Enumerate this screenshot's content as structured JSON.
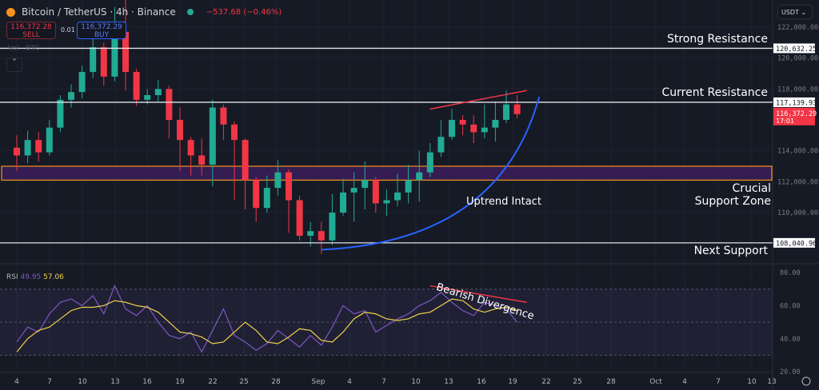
{
  "header": {
    "symbol": "Bitcoin / TetherUS · 4h · Binance",
    "change": "−537.68 (−0.46%)",
    "sell_price": "116,372.28",
    "sell_label": "SELL",
    "buy_price": "116,372.29",
    "buy_label": "BUY",
    "spread": "0.01",
    "volume_label": "Vol · BTC",
    "currency": "USDT"
  },
  "colors": {
    "up": "#22ab94",
    "down": "#f23645",
    "rsi": "#7e57c2",
    "rsi_ma": "#f0d24a",
    "zone_fill": "#3b1f5c",
    "zone_border": "#f7931a",
    "curve": "#2962ff",
    "divergence": "#f23645"
  },
  "chart_data": [
    {
      "type": "candlestick",
      "title": "Bitcoin / TetherUS · 4h · Binance",
      "ylim": [
        106500,
        123800
      ],
      "y_ticks": [
        "122,000.00",
        "120,000.00",
        "118,000.00",
        "114,000.00",
        "112,000.00",
        "110,000.00"
      ],
      "y_tick_values": [
        122000,
        120000,
        118000,
        114000,
        112000,
        110000
      ],
      "x_ticks": [
        "4",
        "7",
        "10",
        "13",
        "16",
        "19",
        "22",
        "25",
        "28",
        "Sep",
        "4",
        "7",
        "10",
        "13",
        "16",
        "19",
        "22",
        "25",
        "28",
        "Oct",
        "4",
        "7",
        "10",
        "13"
      ],
      "candles": [
        {
          "date": "Aug 4",
          "o": 114200,
          "h": 115000,
          "l": 112700,
          "c": 113700
        },
        {
          "date": "Aug 5",
          "o": 113700,
          "h": 115300,
          "l": 113200,
          "c": 114700
        },
        {
          "date": "Aug 6",
          "o": 114700,
          "h": 115200,
          "l": 113300,
          "c": 113900
        },
        {
          "date": "Aug 7",
          "o": 113900,
          "h": 116000,
          "l": 113700,
          "c": 115500
        },
        {
          "date": "Aug 8",
          "o": 115500,
          "h": 117600,
          "l": 115200,
          "c": 117300
        },
        {
          "date": "Aug 9",
          "o": 117300,
          "h": 118300,
          "l": 116800,
          "c": 117800
        },
        {
          "date": "Aug 10",
          "o": 117800,
          "h": 119500,
          "l": 117400,
          "c": 119100
        },
        {
          "date": "Aug 11",
          "o": 119100,
          "h": 122300,
          "l": 118700,
          "c": 120700
        },
        {
          "date": "Aug 12",
          "o": 120700,
          "h": 121000,
          "l": 118200,
          "c": 118800
        },
        {
          "date": "Aug 13",
          "o": 118800,
          "h": 123300,
          "l": 118500,
          "c": 121700
        },
        {
          "date": "Aug 14",
          "o": 121700,
          "h": 124000,
          "l": 117900,
          "c": 119100
        },
        {
          "date": "Aug 15",
          "o": 119100,
          "h": 119300,
          "l": 116900,
          "c": 117300
        },
        {
          "date": "Aug 16",
          "o": 117300,
          "h": 118000,
          "l": 117000,
          "c": 117600
        },
        {
          "date": "Aug 17",
          "o": 117600,
          "h": 118600,
          "l": 117200,
          "c": 118000
        },
        {
          "date": "Aug 18",
          "o": 118000,
          "h": 118200,
          "l": 114800,
          "c": 116000
        },
        {
          "date": "Aug 19",
          "o": 116000,
          "h": 116800,
          "l": 112700,
          "c": 114700
        },
        {
          "date": "Aug 20",
          "o": 114700,
          "h": 114900,
          "l": 112400,
          "c": 113700
        },
        {
          "date": "Aug 21",
          "o": 113700,
          "h": 114800,
          "l": 112400,
          "c": 113100
        },
        {
          "date": "Aug 22",
          "o": 113100,
          "h": 117300,
          "l": 111700,
          "c": 116800
        },
        {
          "date": "Aug 23",
          "o": 116800,
          "h": 117000,
          "l": 114700,
          "c": 115700
        },
        {
          "date": "Aug 24",
          "o": 115700,
          "h": 115900,
          "l": 110800,
          "c": 114700
        },
        {
          "date": "Aug 25",
          "o": 114700,
          "h": 114800,
          "l": 110200,
          "c": 112100
        },
        {
          "date": "Aug 26",
          "o": 112100,
          "h": 112300,
          "l": 109400,
          "c": 110300
        },
        {
          "date": "Aug 27",
          "o": 110300,
          "h": 112400,
          "l": 110000,
          "c": 111600
        },
        {
          "date": "Aug 28",
          "o": 111600,
          "h": 113400,
          "l": 111100,
          "c": 112600
        },
        {
          "date": "Aug 29",
          "o": 112600,
          "h": 112800,
          "l": 108700,
          "c": 110800
        },
        {
          "date": "Aug 30",
          "o": 110800,
          "h": 111100,
          "l": 108200,
          "c": 108500
        },
        {
          "date": "Aug 31",
          "o": 108500,
          "h": 109400,
          "l": 107800,
          "c": 108800
        },
        {
          "date": "Sep 1",
          "o": 108800,
          "h": 109400,
          "l": 107300,
          "c": 108200
        },
        {
          "date": "Sep 2",
          "o": 108200,
          "h": 111200,
          "l": 107900,
          "c": 110000
        },
        {
          "date": "Sep 3",
          "o": 110000,
          "h": 112200,
          "l": 109800,
          "c": 111300
        },
        {
          "date": "Sep 4",
          "o": 111300,
          "h": 112600,
          "l": 109400,
          "c": 111600
        },
        {
          "date": "Sep 5",
          "o": 111600,
          "h": 113300,
          "l": 110200,
          "c": 112100
        },
        {
          "date": "Sep 6",
          "o": 112100,
          "h": 112300,
          "l": 110000,
          "c": 110600
        },
        {
          "date": "Sep 7",
          "o": 110600,
          "h": 111500,
          "l": 109800,
          "c": 110800
        },
        {
          "date": "Sep 8",
          "o": 110800,
          "h": 112500,
          "l": 110400,
          "c": 111300
        },
        {
          "date": "Sep 9",
          "o": 111300,
          "h": 113100,
          "l": 110600,
          "c": 112100
        },
        {
          "date": "Sep 10",
          "o": 112100,
          "h": 114000,
          "l": 110700,
          "c": 112600
        },
        {
          "date": "Sep 11",
          "o": 112600,
          "h": 114500,
          "l": 112300,
          "c": 113900
        },
        {
          "date": "Sep 12",
          "o": 113900,
          "h": 116000,
          "l": 113600,
          "c": 114900
        },
        {
          "date": "Sep 13",
          "o": 114900,
          "h": 116700,
          "l": 114700,
          "c": 116000
        },
        {
          "date": "Sep 14",
          "o": 116000,
          "h": 116300,
          "l": 115000,
          "c": 115700
        },
        {
          "date": "Sep 15",
          "o": 115700,
          "h": 116300,
          "l": 114500,
          "c": 115200
        },
        {
          "date": "Sep 16",
          "o": 115200,
          "h": 117000,
          "l": 114800,
          "c": 115500
        },
        {
          "date": "Sep 17",
          "o": 115500,
          "h": 117200,
          "l": 114600,
          "c": 116000
        },
        {
          "date": "Sep 18",
          "o": 116000,
          "h": 117900,
          "l": 115800,
          "c": 117000
        },
        {
          "date": "Sep 19",
          "o": 117000,
          "h": 117600,
          "l": 116100,
          "c": 116372
        }
      ],
      "levels": [
        {
          "label": "Strong Resistance",
          "value": 120632.25,
          "price_label": "120,632.25"
        },
        {
          "label": "Current Resistance",
          "value": 117139.93,
          "price_label": "117,139.93"
        },
        {
          "label": "Next Support",
          "value": 108040.96,
          "price_label": "108,040.96"
        }
      ],
      "zone": {
        "label_line1": "Crucial",
        "label_line2": "Support Zone",
        "low": 112100,
        "high": 113000
      },
      "curve": {
        "label": "Uptrend Intact",
        "from": {
          "date": "Aug 31",
          "value": 107600
        },
        "to": {
          "date": "Sep 20",
          "value": 117500
        }
      },
      "trendline": {
        "from": {
          "date": "Sep 12",
          "value": 116700
        },
        "to": {
          "date": "Sep 19",
          "value": 117900
        }
      },
      "last_price": {
        "value": 116372.29,
        "label": "116,372.29",
        "countdown": "17:01"
      }
    },
    {
      "type": "line",
      "title": "RSI",
      "rsi_value": "49.95",
      "ma_value": "57.06",
      "ylim": [
        20,
        80
      ],
      "bands": [
        30,
        50,
        70
      ],
      "y_ticks": [
        "80.00",
        "60.00",
        "40.00",
        "20.00"
      ],
      "y_tick_values": [
        80,
        60,
        40,
        20
      ],
      "series": [
        {
          "name": "RSI",
          "values": [
            38,
            47,
            44,
            55,
            62,
            64,
            60,
            66,
            55,
            72,
            58,
            54,
            60,
            50,
            42,
            40,
            44,
            32,
            45,
            58,
            42,
            38,
            33,
            37,
            45,
            40,
            35,
            42,
            36,
            47,
            60,
            55,
            57,
            44,
            48,
            52,
            55,
            60,
            63,
            68,
            62,
            57,
            54,
            62,
            60,
            58,
            50
          ]
        },
        {
          "name": "RSI MA",
          "values": [
            32,
            40,
            45,
            47,
            52,
            57,
            59,
            59,
            60,
            63,
            62,
            60,
            59,
            56,
            50,
            44,
            43,
            41,
            37,
            38,
            44,
            50,
            45,
            38,
            37,
            41,
            46,
            45,
            39,
            38,
            44,
            52,
            56,
            55,
            52,
            51,
            52,
            55,
            56,
            60,
            64,
            63,
            58,
            56,
            58,
            59,
            57
          ]
        }
      ],
      "annotation": "Bearish Divergence",
      "divergence": {
        "from": {
          "date": "Sep 12",
          "value": 72
        },
        "to": {
          "date": "Sep 19",
          "value": 62
        }
      }
    }
  ]
}
